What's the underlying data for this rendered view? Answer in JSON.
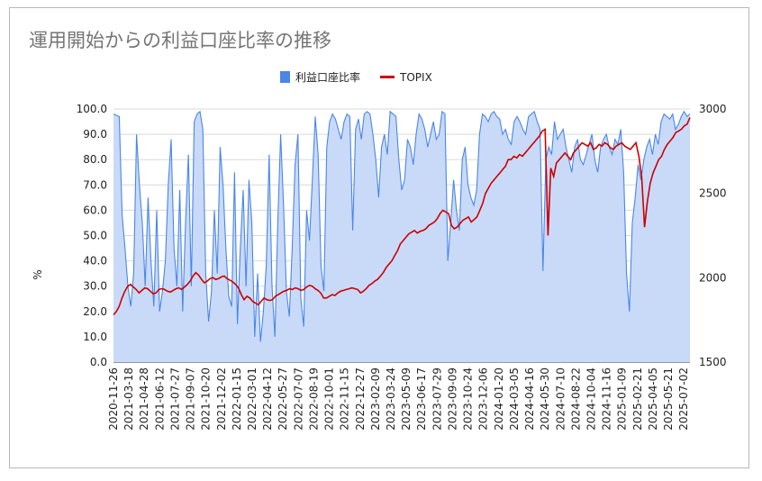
{
  "chart_data": {
    "type": "area+line",
    "title": "運用開始からの利益口座比率の推移",
    "ylabel": "%",
    "ylim": [
      0,
      100
    ],
    "y2lim": [
      1500,
      3000
    ],
    "yticks": [
      "0.0",
      "10.0",
      "20.0",
      "30.0",
      "40.0",
      "50.0",
      "60.0",
      "70.0",
      "80.0",
      "90.0",
      "100.0"
    ],
    "y2ticks": [
      "1500",
      "2000",
      "2500",
      "3000"
    ],
    "legend_position": "top",
    "grid": true,
    "x_tick_labels": [
      "2020-11-26",
      "2021-03-18",
      "2021-04-28",
      "2021-06-12",
      "2021-07-27",
      "2021-09-07",
      "2021-10-20",
      "2021-12-02",
      "2022-01-15",
      "2022-03-01",
      "2022-04-12",
      "2022-05-27",
      "2022-07-07",
      "2022-08-19",
      "2022-10-01",
      "2022-11-15",
      "2022-12-27",
      "2023-02-09",
      "2023-03-24",
      "2023-05-09",
      "2023-06-17",
      "2023-07-29",
      "2023-09-09",
      "2023-10-24",
      "2023-12-06",
      "2024-01-20",
      "2024-03-05",
      "2024-04-16",
      "2024-05-30",
      "2024-07-10",
      "2024-08-22",
      "2024-10-04",
      "2024-11-16",
      "2025-01-09",
      "2025-02-21",
      "2025-04-05",
      "2025-05-21",
      "2025-07-02"
    ],
    "series": [
      {
        "name": "利益口座比率",
        "axis": "left",
        "color": "#4a86e8",
        "fill": "#c9daf8",
        "x_index": [
          0,
          2,
          3,
          4,
          5,
          6,
          7,
          8,
          9,
          10,
          11,
          12,
          13,
          14,
          15,
          16,
          17,
          18,
          19,
          20,
          21,
          22,
          23,
          24,
          25,
          26,
          27,
          28,
          29,
          30,
          31,
          32,
          33,
          34,
          35,
          36,
          37,
          38,
          39,
          40,
          41,
          42,
          43,
          44,
          45,
          46,
          47,
          48,
          49,
          50,
          51,
          52,
          53,
          54,
          55,
          56,
          57,
          58,
          59,
          60,
          61,
          62,
          63,
          64,
          65,
          66,
          67,
          68,
          69,
          70,
          71,
          72,
          73,
          74,
          75,
          76,
          77,
          78,
          79,
          80,
          81,
          82,
          83,
          84,
          85,
          86,
          87,
          88,
          89,
          90,
          91,
          92,
          93,
          94,
          95,
          96,
          97,
          98,
          99,
          100,
          101,
          102,
          103,
          104,
          105,
          106,
          107,
          108,
          109,
          110,
          111,
          112,
          113,
          114,
          115,
          116,
          117,
          118,
          119,
          120,
          121,
          122,
          123,
          124,
          125,
          126,
          127,
          128,
          129,
          130,
          131,
          132,
          133,
          134,
          135,
          136,
          137,
          138,
          139,
          140,
          141,
          142,
          143,
          144,
          145,
          146,
          147,
          148,
          149,
          150,
          151,
          152,
          153,
          154,
          155,
          156,
          157,
          158,
          159,
          160,
          161,
          162,
          163,
          164,
          165,
          166,
          167,
          168,
          169,
          170,
          171,
          172,
          173,
          174,
          175,
          176,
          177,
          178,
          179,
          180,
          181,
          182,
          183,
          184,
          185,
          186,
          187,
          188,
          189,
          190,
          191,
          192,
          193,
          194,
          195,
          196,
          197,
          198,
          199,
          200
        ],
        "values": [
          98,
          97,
          58,
          45,
          30,
          22,
          35,
          90,
          70,
          55,
          30,
          65,
          40,
          22,
          60,
          20,
          28,
          40,
          70,
          88,
          45,
          30,
          68,
          20,
          55,
          82,
          30,
          95,
          98,
          99,
          92,
          35,
          16,
          28,
          60,
          35,
          85,
          70,
          45,
          26,
          22,
          75,
          15,
          45,
          68,
          30,
          72,
          55,
          10,
          35,
          8,
          20,
          38,
          82,
          30,
          10,
          55,
          90,
          62,
          28,
          18,
          45,
          78,
          90,
          25,
          14,
          60,
          48,
          72,
          97,
          82,
          38,
          28,
          85,
          95,
          98,
          96,
          92,
          88,
          95,
          98,
          97,
          52,
          92,
          96,
          88,
          98,
          99,
          98,
          90,
          80,
          65,
          85,
          90,
          82,
          99,
          98,
          97,
          80,
          68,
          72,
          88,
          85,
          78,
          90,
          98,
          96,
          92,
          85,
          90,
          95,
          88,
          90,
          99,
          98,
          40,
          55,
          72,
          60,
          52,
          80,
          85,
          70,
          65,
          62,
          68,
          90,
          98,
          97,
          95,
          98,
          99,
          97,
          96,
          90,
          92,
          88,
          86,
          95,
          97,
          95,
          92,
          90,
          97,
          98,
          99,
          95,
          92,
          36,
          80,
          85,
          82,
          95,
          88,
          90,
          92,
          85,
          80,
          75,
          85,
          88,
          80,
          78,
          82,
          86,
          90,
          80,
          75,
          85,
          88,
          90,
          85,
          82,
          88,
          86,
          92,
          75,
          35,
          20,
          55,
          65,
          78,
          72,
          80,
          85,
          88,
          82,
          90,
          86,
          95,
          98,
          97,
          96,
          98,
          92,
          94,
          97,
          99,
          97,
          98
        ]
      },
      {
        "name": "TOPIX",
        "axis": "right",
        "color": "#cc0000",
        "values": [
          1780,
          1800,
          1830,
          1880,
          1920,
          1950,
          1960,
          1945,
          1930,
          1910,
          1925,
          1940,
          1935,
          1920,
          1905,
          1910,
          1930,
          1935,
          1930,
          1920,
          1915,
          1925,
          1935,
          1940,
          1930,
          1945,
          1960,
          1980,
          2010,
          2030,
          2015,
          1990,
          1970,
          1980,
          1995,
          2000,
          1990,
          1995,
          2005,
          2010,
          1995,
          1985,
          1975,
          1960,
          1940,
          1900,
          1870,
          1890,
          1880,
          1860,
          1850,
          1840,
          1860,
          1880,
          1870,
          1865,
          1870,
          1890,
          1900,
          1910,
          1920,
          1925,
          1935,
          1930,
          1940,
          1935,
          1925,
          1930,
          1945,
          1955,
          1950,
          1935,
          1925,
          1910,
          1880,
          1880,
          1890,
          1900,
          1895,
          1910,
          1920,
          1925,
          1930,
          1935,
          1940,
          1935,
          1930,
          1910,
          1920,
          1935,
          1955,
          1965,
          1980,
          1990,
          2010,
          2030,
          2060,
          2080,
          2100,
          2130,
          2160,
          2200,
          2220,
          2240,
          2260,
          2270,
          2280,
          2265,
          2275,
          2280,
          2290,
          2310,
          2320,
          2330,
          2350,
          2380,
          2400,
          2390,
          2380,
          2310,
          2290,
          2300,
          2320,
          2340,
          2350,
          2360,
          2330,
          2345,
          2360,
          2400,
          2440,
          2500,
          2530,
          2560,
          2580,
          2600,
          2620,
          2640,
          2660,
          2700,
          2700,
          2720,
          2710,
          2730,
          2720,
          2740,
          2760,
          2780,
          2800,
          2820,
          2840,
          2870,
          2880,
          2250,
          2650,
          2600,
          2680,
          2700,
          2720,
          2740,
          2720,
          2700,
          2740,
          2760,
          2780,
          2800,
          2790,
          2780,
          2800,
          2760,
          2770,
          2790,
          2780,
          2800,
          2790,
          2770,
          2760,
          2780,
          2790,
          2800,
          2780,
          2770,
          2760,
          2780,
          2800,
          2720,
          2600,
          2300,
          2450,
          2560,
          2620,
          2660,
          2700,
          2720,
          2760,
          2790,
          2810,
          2830,
          2860,
          2870,
          2880,
          2900,
          2910,
          2950
        ]
      }
    ]
  }
}
